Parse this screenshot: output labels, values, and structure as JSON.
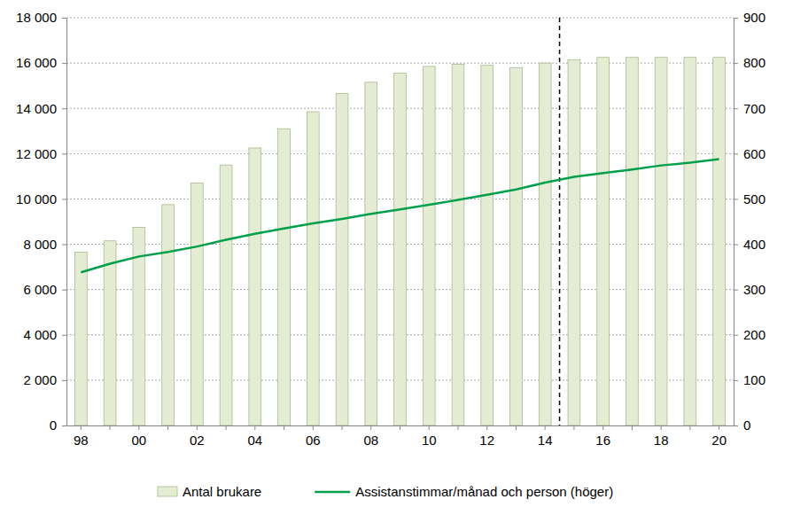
{
  "chart_data": {
    "type": "bar",
    "categories": [
      "98",
      null,
      "00",
      null,
      "02",
      null,
      "04",
      null,
      "06",
      null,
      "08",
      null,
      "10",
      null,
      "12",
      null,
      "14",
      null,
      "16",
      null,
      "18",
      null,
      "20"
    ],
    "series": [
      {
        "name": "Antal brukare",
        "type": "bar",
        "color": "#e4edd3",
        "values": [
          7650,
          8150,
          8750,
          9750,
          10700,
          11500,
          12250,
          13100,
          13850,
          14650,
          15150,
          15550,
          15850,
          15950,
          15900,
          15800,
          16000,
          16150,
          16250,
          16250,
          16250,
          16250,
          16250
        ]
      },
      {
        "name": "Assistanstimmar/månad och person (höger)",
        "type": "line",
        "axis": "y2",
        "color": "#00a04b",
        "values": [
          338,
          357,
          373,
          383,
          395,
          410,
          423,
          435,
          446,
          456,
          467,
          477,
          487,
          498,
          509,
          521,
          536,
          549,
          557,
          565,
          574,
          580,
          588
        ]
      }
    ],
    "ylim": [
      0,
      18000
    ],
    "yticks": [
      0,
      {
        "value": 2000,
        "label": "2 000"
      },
      {
        "value": 4000,
        "label": "4 000"
      },
      {
        "value": 6000,
        "label": "6 000"
      },
      {
        "value": 8000,
        "label": "8 000"
      },
      {
        "value": 10000,
        "label": "10 000"
      },
      {
        "value": 12000,
        "label": "12 000"
      },
      {
        "value": 14000,
        "label": "14 000"
      },
      {
        "value": 16000,
        "label": "16 000"
      },
      {
        "value": 18000,
        "label": "18 000"
      }
    ],
    "y2lim": [
      0,
      900
    ],
    "y2ticks": [
      0,
      100,
      200,
      300,
      400,
      500,
      600,
      700,
      800,
      900
    ],
    "grid": true,
    "legend": "bottom",
    "annotations": [
      {
        "type": "vline",
        "after": 16,
        "line_style": "dashed"
      }
    ]
  }
}
